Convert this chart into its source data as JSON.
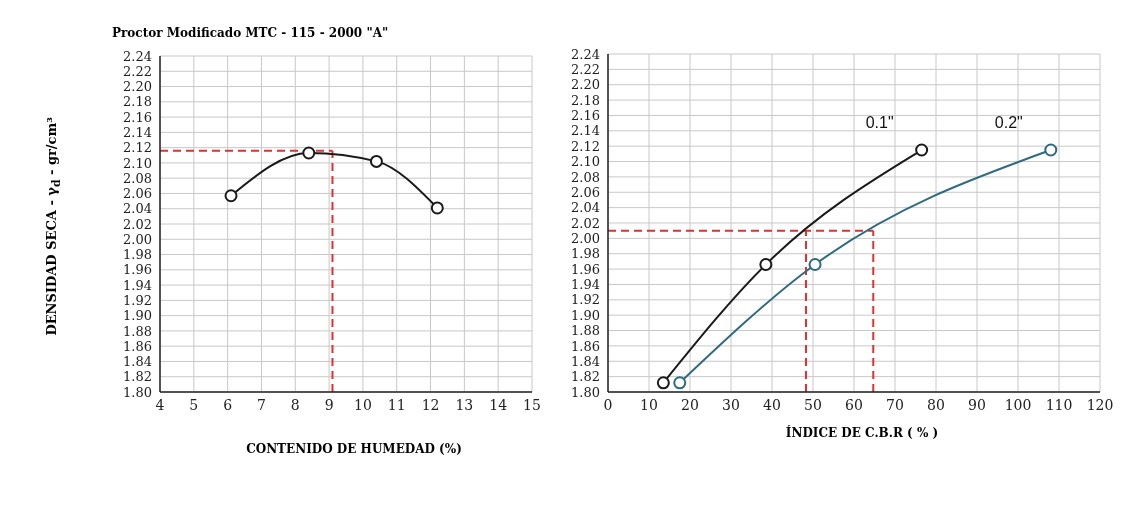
{
  "chart_data": [
    {
      "type": "line",
      "title": "Proctor Modificado MTC - 115 - 2000 \"A\"",
      "xlabel": "CONTENIDO DE HUMEDAD (%)",
      "ylabel": "DENSIDAD SECA - γ$_{d}$ - gr/cm³",
      "series": [
        {
          "color": "#1a1a1a",
          "x": [
            6.1,
            8.4,
            10.4,
            12.2
          ],
          "values": [
            2.057,
            2.113,
            2.102,
            2.041
          ]
        }
      ],
      "xlim": [
        4,
        15
      ],
      "xticks": [
        4,
        5,
        6,
        7,
        8,
        9,
        10,
        11,
        12,
        13,
        14,
        15
      ],
      "ylim": [
        1.8,
        2.24
      ],
      "yticks": [
        {
          "value": 1.8,
          "label": "1.80"
        },
        {
          "value": 1.82,
          "label": "1.82"
        },
        {
          "value": 1.84,
          "label": "1.84"
        },
        {
          "value": 1.86,
          "label": "1.86"
        },
        {
          "value": 1.88,
          "label": "1.88"
        },
        {
          "value": 1.9,
          "label": "1.90"
        },
        {
          "value": 1.92,
          "label": "1.92"
        },
        {
          "value": 1.94,
          "label": "1.94"
        },
        {
          "value": 1.96,
          "label": "1.96"
        },
        {
          "value": 1.98,
          "label": "1.98"
        },
        {
          "value": 2.0,
          "label": "2.00"
        },
        {
          "value": 2.02,
          "label": "2.02"
        },
        {
          "value": 2.04,
          "label": "2.04"
        },
        {
          "value": 2.06,
          "label": "2.06"
        },
        {
          "value": 2.08,
          "label": "2.08"
        },
        {
          "value": 2.1,
          "label": "2.10"
        },
        {
          "value": 2.12,
          "label": "2.12"
        },
        {
          "value": 2.14,
          "label": "2.14"
        },
        {
          "value": 2.16,
          "label": "2.16"
        },
        {
          "value": 2.18,
          "label": "2.18"
        },
        {
          "value": 2.2,
          "label": "2.20"
        },
        {
          "value": 2.22,
          "label": "2.22"
        },
        {
          "value": 2.24,
          "label": "2.24"
        }
      ],
      "ref_lines": [
        {
          "axis": "x",
          "value": 9.1,
          "color": "#e03030",
          "line_style": "dashed"
        },
        {
          "axis": "y",
          "value": 2.116,
          "color": "#e03030",
          "line_style": "dashed"
        }
      ],
      "grid": true,
      "legend": false,
      "marker": "circle",
      "line_style": "solid"
    },
    {
      "type": "line",
      "xlabel": "ÍNDICE DE C.B.R ( % )",
      "series": [
        {
          "name": "0.1\"",
          "color": "#1a1a1a",
          "x": [
            13.5,
            38.5,
            76.5
          ],
          "values": [
            1.812,
            1.966,
            2.115
          ]
        },
        {
          "name": "0.2\"",
          "color": "#2e6b80",
          "x": [
            17.5,
            50.5,
            108
          ],
          "values": [
            1.812,
            1.966,
            2.115
          ]
        }
      ],
      "xlim": [
        0,
        120
      ],
      "xticks": [
        0,
        10,
        20,
        30,
        40,
        50,
        60,
        70,
        80,
        90,
        100,
        110,
        120
      ],
      "ylim": [
        1.8,
        2.24
      ],
      "yticks": [
        {
          "value": 1.8,
          "label": "1.80"
        },
        {
          "value": 1.82,
          "label": "1.82"
        },
        {
          "value": 1.84,
          "label": "1.84"
        },
        {
          "value": 1.86,
          "label": "1.86"
        },
        {
          "value": 1.88,
          "label": "1.88"
        },
        {
          "value": 1.9,
          "label": "1.90"
        },
        {
          "value": 1.92,
          "label": "1.92"
        },
        {
          "value": 1.94,
          "label": "1.94"
        },
        {
          "value": 1.96,
          "label": "1.96"
        },
        {
          "value": 1.98,
          "label": "1.98"
        },
        {
          "value": 2.0,
          "label": "2.00"
        },
        {
          "value": 2.02,
          "label": "2.02"
        },
        {
          "value": 2.04,
          "label": "2.04"
        },
        {
          "value": 2.06,
          "label": "2.06"
        },
        {
          "value": 2.08,
          "label": "2.08"
        },
        {
          "value": 2.1,
          "label": "2.10"
        },
        {
          "value": 2.12,
          "label": "2.12"
        },
        {
          "value": 2.14,
          "label": "2.14"
        },
        {
          "value": 2.16,
          "label": "2.16"
        },
        {
          "value": 2.18,
          "label": "2.18"
        },
        {
          "value": 2.2,
          "label": "2.20"
        },
        {
          "value": 2.22,
          "label": "2.22"
        },
        {
          "value": 2.24,
          "label": "2.24"
        }
      ],
      "ref_lines": [
        {
          "axis": "y",
          "value": 2.01,
          "color": "#e03030",
          "line_style": "dashed"
        },
        {
          "axis": "x",
          "value": 48.3,
          "color": "#e03030",
          "line_style": "dashed"
        },
        {
          "axis": "x",
          "value": 64.7,
          "color": "#e03030",
          "line_style": "dashed"
        }
      ],
      "grid": true,
      "legend": false,
      "marker": "circle",
      "line_style": "solid"
    }
  ]
}
